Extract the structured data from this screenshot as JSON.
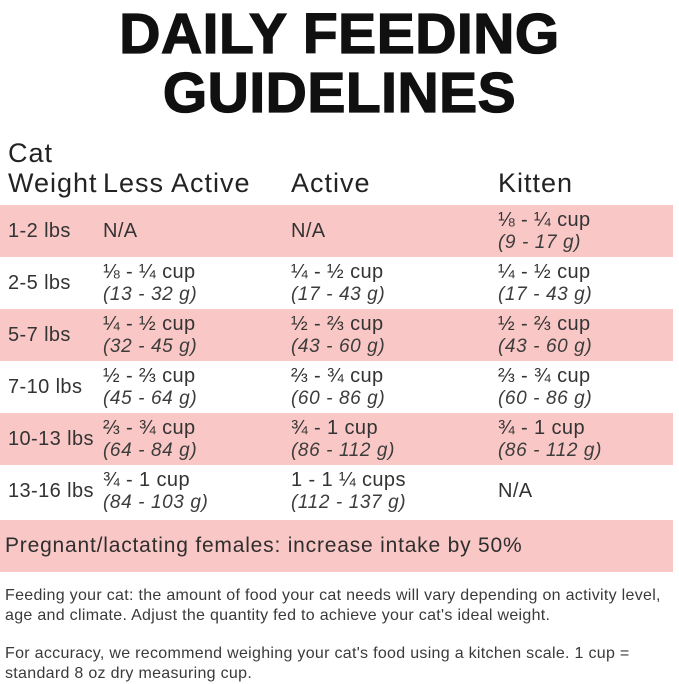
{
  "title": {
    "line1": "DAILY FEEDING",
    "line2": "GUIDELINES"
  },
  "table": {
    "header": {
      "col1_line1": "Cat",
      "col1_line2": "Weight",
      "col2": "Less Active",
      "col3": "Active",
      "col4": "Kitten"
    },
    "rows": [
      {
        "weight": "1-2 lbs",
        "less_active_cup": "N/A",
        "active_cup": "N/A",
        "kitten_cup": "⅛ - ¼ cup",
        "kitten_g": "(9 - 17 g)"
      },
      {
        "weight": "2-5 lbs",
        "less_active_cup": "⅛ - ¼ cup",
        "less_active_g": "(13 - 32 g)",
        "active_cup": "¼ - ½ cup",
        "active_g": "(17 - 43 g)",
        "kitten_cup": "¼ - ½ cup",
        "kitten_g": "(17 - 43 g)"
      },
      {
        "weight": "5-7 lbs",
        "less_active_cup": "¼ - ½ cup",
        "less_active_g": "(32 - 45 g)",
        "active_cup": "½ - ⅔ cup",
        "active_g": "(43 - 60 g)",
        "kitten_cup": "½ - ⅔ cup",
        "kitten_g": "(43 - 60 g)"
      },
      {
        "weight": "7-10 lbs",
        "less_active_cup": "½ - ⅔ cup",
        "less_active_g": "(45 - 64 g)",
        "active_cup": "⅔ - ¾ cup",
        "active_g": "(60 - 86 g)",
        "kitten_cup": "⅔ - ¾ cup",
        "kitten_g": "(60 - 86 g)"
      },
      {
        "weight": "10-13 lbs",
        "less_active_cup": "⅔ - ¾ cup",
        "less_active_g": "(64 - 84 g)",
        "active_cup": "¾ - 1 cup",
        "active_g": "(86 - 112 g)",
        "kitten_cup": "¾ - 1 cup",
        "kitten_g": "(86 - 112 g)"
      },
      {
        "weight": "13-16 lbs",
        "less_active_cup": "¾ - 1 cup",
        "less_active_g": "(84 - 103 g)",
        "active_cup": "1 - 1 ¼ cups",
        "active_g": "(112 - 137 g)",
        "kitten_cup": "N/A"
      }
    ],
    "note": "Pregnant/lactating females: increase intake by 50%"
  },
  "footer": {
    "para1": "Feeding your cat: the amount of food your cat needs will vary depending on activity level, age and climate. Adjust the quantity fed to achieve your cat's ideal weight.",
    "para2": "For accuracy, we recommend weighing your cat's food using a kitchen scale. 1 cup = standard 8 oz dry measuring cup."
  },
  "colors": {
    "row_highlight": "#f9c8c6",
    "title_text": "#101010",
    "body_text": "#333333"
  }
}
